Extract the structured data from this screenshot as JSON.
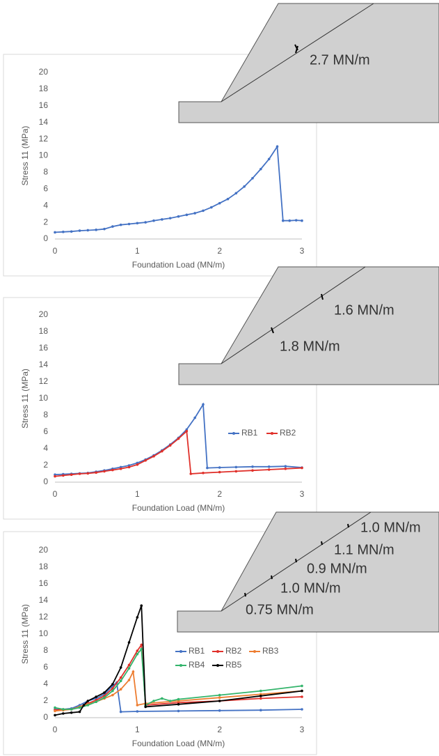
{
  "chart_data": [
    {
      "type": "line",
      "y_label": "Stress 11 (MPa)",
      "x_label": "Foundation Load (MN/m)",
      "xlim": [
        0,
        3
      ],
      "xticks": [
        0,
        1,
        2,
        3
      ],
      "ylim": [
        0,
        20
      ],
      "yticks": [
        0,
        2,
        4,
        6,
        8,
        10,
        12,
        14,
        16,
        18,
        20
      ],
      "grid": false,
      "color": "#4472c4",
      "x": [
        0,
        0.1,
        0.2,
        0.3,
        0.4,
        0.5,
        0.6,
        0.7,
        0.8,
        0.9,
        1.0,
        1.1,
        1.2,
        1.3,
        1.4,
        1.5,
        1.6,
        1.7,
        1.8,
        1.9,
        2.0,
        2.1,
        2.2,
        2.3,
        2.4,
        2.5,
        2.6,
        2.7,
        2.77,
        2.85,
        2.93,
        3.0
      ],
      "values": [
        0.8,
        0.85,
        0.9,
        1.0,
        1.05,
        1.1,
        1.2,
        1.5,
        1.7,
        1.8,
        1.9,
        2.0,
        2.2,
        2.35,
        2.5,
        2.7,
        2.9,
        3.1,
        3.4,
        3.8,
        4.3,
        4.8,
        5.5,
        6.3,
        7.3,
        8.4,
        9.6,
        11.1,
        2.2,
        2.2,
        2.25,
        2.2
      ]
    },
    {
      "type": "line",
      "y_label": "Stress 11 (MPa)",
      "x_label": "Foundation Load (MN/m)",
      "xlim": [
        0,
        3
      ],
      "xticks": [
        0,
        1,
        2,
        3
      ],
      "ylim": [
        0,
        20
      ],
      "yticks": [
        0,
        2,
        4,
        6,
        8,
        10,
        12,
        14,
        16,
        18,
        20
      ],
      "grid": false,
      "series": [
        {
          "name": "RB1",
          "color": "#4472c4",
          "x": [
            0,
            0.1,
            0.2,
            0.3,
            0.4,
            0.5,
            0.6,
            0.7,
            0.8,
            0.9,
            1.0,
            1.1,
            1.2,
            1.3,
            1.4,
            1.5,
            1.6,
            1.7,
            1.8,
            1.85,
            2.0,
            2.2,
            2.4,
            2.6,
            2.8,
            3.0
          ],
          "values": [
            0.9,
            0.95,
            1.0,
            1.05,
            1.1,
            1.25,
            1.4,
            1.6,
            1.8,
            2.0,
            2.3,
            2.7,
            3.2,
            3.8,
            4.5,
            5.3,
            6.3,
            7.7,
            9.3,
            1.7,
            1.75,
            1.8,
            1.85,
            1.85,
            1.9,
            1.75
          ]
        },
        {
          "name": "RB2",
          "color": "#e0302a",
          "x": [
            0,
            0.1,
            0.2,
            0.3,
            0.4,
            0.5,
            0.6,
            0.7,
            0.8,
            0.9,
            1.0,
            1.1,
            1.2,
            1.3,
            1.4,
            1.5,
            1.6,
            1.65,
            1.8,
            2.0,
            2.2,
            2.4,
            2.6,
            2.8,
            3.0
          ],
          "values": [
            0.7,
            0.8,
            0.9,
            1.0,
            1.05,
            1.15,
            1.3,
            1.45,
            1.6,
            1.8,
            2.1,
            2.6,
            3.1,
            3.7,
            4.4,
            5.2,
            6.1,
            1.0,
            1.1,
            1.2,
            1.3,
            1.4,
            1.5,
            1.6,
            1.7
          ]
        }
      ]
    },
    {
      "type": "line",
      "y_label": "Stress 11 (MPa)",
      "x_label": "Foundation Load (MN/m)",
      "xlim": [
        0,
        3
      ],
      "xticks": [
        0,
        1,
        2,
        3
      ],
      "ylim": [
        0,
        20
      ],
      "yticks": [
        0,
        2,
        4,
        6,
        8,
        10,
        12,
        14,
        16,
        18,
        20
      ],
      "grid": false,
      "series": [
        {
          "name": "RB1",
          "color": "#4472c4",
          "x": [
            0,
            0.1,
            0.2,
            0.3,
            0.4,
            0.5,
            0.6,
            0.7,
            0.75,
            0.8,
            1.0,
            1.5,
            2.0,
            2.5,
            3.0
          ],
          "values": [
            1.0,
            1.0,
            1.1,
            1.5,
            2.0,
            2.3,
            2.8,
            3.8,
            4.2,
            0.7,
            0.75,
            0.8,
            0.85,
            0.9,
            1.0
          ]
        },
        {
          "name": "RB2",
          "color": "#e0302a",
          "x": [
            0,
            0.1,
            0.2,
            0.3,
            0.4,
            0.5,
            0.6,
            0.7,
            0.8,
            0.9,
            1.0,
            1.05,
            1.1,
            1.5,
            2.0,
            2.5,
            3.0
          ],
          "values": [
            0.9,
            1.0,
            1.0,
            1.3,
            1.7,
            2.1,
            2.6,
            3.5,
            4.8,
            6.3,
            8.0,
            8.7,
            1.5,
            1.8,
            2.0,
            2.3,
            2.5
          ]
        },
        {
          "name": "RB3",
          "color": "#ed7d31",
          "x": [
            0,
            0.1,
            0.2,
            0.3,
            0.4,
            0.5,
            0.6,
            0.7,
            0.8,
            0.9,
            0.95,
            1.0,
            1.1,
            1.5,
            2.0,
            2.5,
            3.0
          ],
          "values": [
            0.8,
            0.9,
            1.0,
            1.3,
            1.6,
            1.9,
            2.3,
            2.7,
            3.4,
            4.5,
            5.5,
            1.5,
            1.7,
            2.0,
            2.4,
            2.8,
            3.2
          ]
        },
        {
          "name": "RB4",
          "color": "#33b46b",
          "x": [
            0,
            0.1,
            0.2,
            0.3,
            0.4,
            0.5,
            0.6,
            0.7,
            0.8,
            0.9,
            1.0,
            1.05,
            1.1,
            1.2,
            1.3,
            1.4,
            1.5,
            2.0,
            2.5,
            3.0
          ],
          "values": [
            1.2,
            1.0,
            1.0,
            1.2,
            1.5,
            1.9,
            2.4,
            3.2,
            4.4,
            5.9,
            7.6,
            8.2,
            1.5,
            2.0,
            2.3,
            2.0,
            2.2,
            2.7,
            3.2,
            3.8
          ]
        },
        {
          "name": "RB5",
          "color": "#000000",
          "x": [
            0,
            0.1,
            0.2,
            0.3,
            0.35,
            0.4,
            0.5,
            0.6,
            0.7,
            0.8,
            0.9,
            1.0,
            1.05,
            1.1,
            1.5,
            2.0,
            2.5,
            3.0
          ],
          "values": [
            0.3,
            0.5,
            0.6,
            0.7,
            1.5,
            2.0,
            2.5,
            3.0,
            4.0,
            6.0,
            9.0,
            12.0,
            13.4,
            1.3,
            1.6,
            2.0,
            2.6,
            3.2
          ]
        }
      ]
    }
  ],
  "diagrams": [
    {
      "labels": [
        "2.7 MN/m"
      ]
    },
    {
      "labels": [
        "1.6 MN/m",
        "1.8 MN/m"
      ]
    },
    {
      "labels": [
        "1.0 MN/m",
        "1.1 MN/m",
        "0.9 MN/m",
        "1.0 MN/m",
        "0.75 MN/m"
      ]
    }
  ]
}
